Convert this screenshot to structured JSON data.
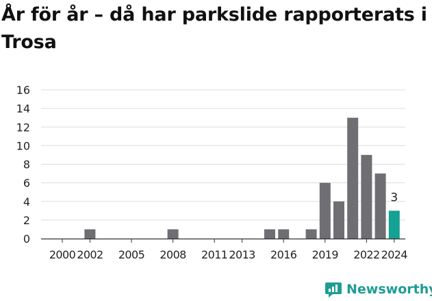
{
  "title": "År för år – då har parkslide rapporterats i Trosa",
  "brand": {
    "name": "Newsworthy",
    "color": "#1f9c94"
  },
  "chart_data": {
    "type": "bar",
    "categories": [
      "2000",
      "2001",
      "2002",
      "2003",
      "2004",
      "2005",
      "2006",
      "2007",
      "2008",
      "2009",
      "2010",
      "2011",
      "2012",
      "2013",
      "2014",
      "2015",
      "2016",
      "2017",
      "2018",
      "2019",
      "2020",
      "2021",
      "2022",
      "2023",
      "2024"
    ],
    "values": [
      0,
      0,
      1,
      0,
      0,
      0,
      0,
      0,
      1,
      0,
      0,
      0,
      0,
      0,
      0,
      1,
      1,
      0,
      1,
      6,
      4,
      13,
      9,
      7,
      3
    ],
    "x_tick_labels": [
      "2000",
      "2002",
      "2005",
      "2008",
      "2011",
      "2013",
      "2016",
      "2019",
      "2022",
      "2024"
    ],
    "ylim": [
      0,
      16
    ],
    "y_ticks": [
      0,
      2,
      4,
      6,
      8,
      10,
      12,
      14,
      16
    ],
    "grid": true,
    "bar_color": "#6e6e73",
    "highlight": {
      "category": "2024",
      "color": "#15a194",
      "label": "3"
    },
    "title": "År för år – då har parkslide rapporterats i Trosa",
    "xlabel": "",
    "ylabel": ""
  }
}
